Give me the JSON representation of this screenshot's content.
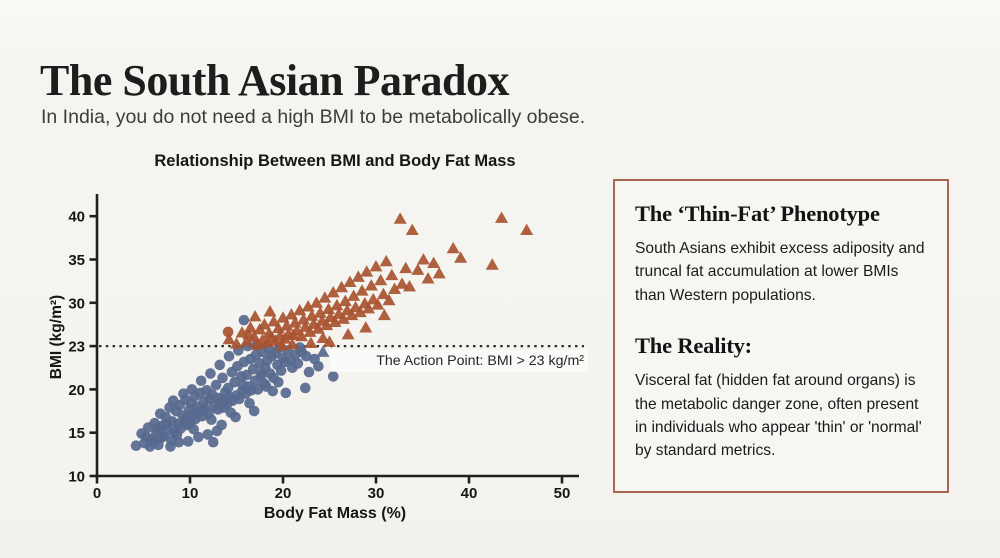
{
  "page": {
    "title": "The South Asian Paradox",
    "subtitle": "In India, you do not need a high BMI to be metabolically obese."
  },
  "chart_data": {
    "type": "scatter",
    "title": "Relationship Between BMI and Body Fat Mass",
    "xlabel": "Body Fat Mass (%)",
    "ylabel": "BMI (kg/m²)",
    "xlim": [
      0,
      50
    ],
    "x_ticks": [
      0,
      10,
      20,
      30,
      40,
      50
    ],
    "y_ticks": [
      10,
      15,
      20,
      23,
      30,
      35,
      40
    ],
    "y_axis_note": "tick labels evenly spaced; 23 replaces 25 on the scale",
    "grid": false,
    "legend": "none",
    "threshold": {
      "y": 23,
      "label": "The Action Point: BMI > 23 kg/m²",
      "style": "dotted"
    },
    "colors": {
      "healthy": "#56698e",
      "risk": "#a8532f",
      "axis": "#202020",
      "threshold_line": "#2e2e2e"
    },
    "series": [
      {
        "name": "below-action-point",
        "marker": "circle",
        "color": "#56698e",
        "points": [
          [
            4.2,
            13.5
          ],
          [
            4.8,
            14.9
          ],
          [
            5.1,
            13.8
          ],
          [
            5.5,
            15.6
          ],
          [
            5.9,
            14.3
          ],
          [
            6.2,
            16.1
          ],
          [
            6.4,
            15.0
          ],
          [
            6.6,
            13.6
          ],
          [
            6.8,
            17.2
          ],
          [
            7.0,
            15.8
          ],
          [
            7.2,
            14.6
          ],
          [
            7.4,
            16.8
          ],
          [
            7.6,
            15.3
          ],
          [
            7.8,
            17.9
          ],
          [
            8.0,
            14.1
          ],
          [
            8.1,
            16.3
          ],
          [
            8.3,
            15.1
          ],
          [
            8.5,
            17.5
          ],
          [
            8.7,
            16.0
          ],
          [
            8.9,
            18.2
          ],
          [
            9.0,
            15.5
          ],
          [
            9.2,
            17.0
          ],
          [
            9.4,
            16.4
          ],
          [
            9.5,
            18.8
          ],
          [
            9.7,
            15.9
          ],
          [
            9.9,
            17.6
          ],
          [
            10.0,
            16.1
          ],
          [
            10.1,
            18.4
          ],
          [
            10.3,
            17.1
          ],
          [
            10.5,
            19.2
          ],
          [
            10.6,
            16.6
          ],
          [
            10.8,
            18.0
          ],
          [
            11.0,
            17.4
          ],
          [
            11.1,
            19.6
          ],
          [
            11.3,
            16.9
          ],
          [
            11.5,
            18.6
          ],
          [
            11.6,
            17.8
          ],
          [
            11.8,
            19.9
          ],
          [
            12.0,
            17.2
          ],
          [
            12.1,
            18.9
          ],
          [
            12.3,
            16.5
          ],
          [
            12.4,
            19.4
          ],
          [
            12.6,
            18.1
          ],
          [
            12.8,
            20.3
          ],
          [
            13.0,
            17.7
          ],
          [
            13.1,
            19.0
          ],
          [
            13.3,
            18.5
          ],
          [
            13.5,
            20.8
          ],
          [
            13.6,
            17.9
          ],
          [
            13.8,
            19.7
          ],
          [
            14.0,
            18.3
          ],
          [
            14.1,
            20.1
          ],
          [
            14.3,
            19.1
          ],
          [
            14.5,
            21.2
          ],
          [
            14.6,
            18.7
          ],
          [
            14.8,
            20.5
          ],
          [
            15.0,
            19.3
          ],
          [
            15.1,
            21.6
          ],
          [
            15.3,
            18.9
          ],
          [
            15.5,
            20.9
          ],
          [
            15.6,
            19.8
          ],
          [
            15.8,
            21.9
          ],
          [
            16.0,
            19.5
          ],
          [
            16.1,
            21.0
          ],
          [
            16.3,
            20.2
          ],
          [
            16.5,
            22.1
          ],
          [
            16.6,
            19.9
          ],
          [
            16.8,
            21.4
          ],
          [
            17.0,
            20.6
          ],
          [
            17.1,
            22.4
          ],
          [
            17.3,
            20.0
          ],
          [
            17.5,
            21.8
          ],
          [
            17.6,
            20.9
          ],
          [
            17.8,
            22.6
          ],
          [
            18.0,
            20.4
          ],
          [
            18.1,
            21.5
          ],
          [
            18.3,
            22.0
          ],
          [
            18.5,
            22.8
          ],
          [
            18.6,
            21.1
          ],
          [
            18.8,
            22.3
          ],
          [
            19.0,
            20.8
          ],
          [
            19.2,
            22.5
          ],
          [
            19.4,
            21.7
          ],
          [
            19.6,
            22.9
          ],
          [
            19.8,
            21.3
          ],
          [
            20.0,
            22.2
          ],
          [
            20.2,
            21.9
          ],
          [
            20.5,
            22.7
          ],
          [
            20.8,
            22.0
          ],
          [
            21.0,
            21.5
          ],
          [
            21.3,
            22.4
          ],
          [
            21.6,
            21.8
          ],
          [
            22.0,
            22.6
          ],
          [
            22.4,
            20.1
          ],
          [
            22.8,
            21.2
          ],
          [
            23.4,
            22.1
          ],
          [
            23.8,
            21.6
          ],
          [
            25.4,
            20.9
          ],
          [
            16.9,
            17.5
          ],
          [
            14.9,
            16.8
          ],
          [
            13.4,
            15.9
          ],
          [
            12.9,
            15.2
          ],
          [
            11.9,
            14.8
          ],
          [
            10.9,
            14.5
          ],
          [
            9.8,
            14.0
          ],
          [
            8.8,
            13.9
          ],
          [
            7.9,
            13.4
          ],
          [
            6.9,
            14.4
          ],
          [
            6.1,
            13.9
          ],
          [
            5.3,
            14.5
          ],
          [
            8.2,
            18.7
          ],
          [
            9.3,
            19.5
          ],
          [
            10.2,
            20.0
          ],
          [
            11.2,
            20.6
          ],
          [
            12.2,
            21.1
          ],
          [
            13.2,
            21.7
          ],
          [
            14.2,
            22.3
          ],
          [
            15.2,
            22.7
          ],
          [
            16.2,
            23.0
          ],
          [
            17.2,
            23.2
          ],
          [
            7.5,
            16.0
          ],
          [
            9.6,
            16.7
          ],
          [
            11.4,
            17.6
          ],
          [
            13.7,
            18.8
          ],
          [
            15.7,
            20.3
          ],
          [
            17.7,
            21.1
          ],
          [
            19.5,
            20.5
          ],
          [
            21.8,
            22.9
          ],
          [
            15.8,
            27.2
          ],
          [
            18.9,
            19.8
          ],
          [
            20.3,
            19.6
          ],
          [
            22.5,
            22.3
          ],
          [
            12.5,
            13.9
          ],
          [
            10.4,
            15.4
          ],
          [
            8.6,
            14.8
          ],
          [
            6.5,
            15.5
          ],
          [
            5.7,
            13.4
          ],
          [
            16.4,
            18.4
          ],
          [
            18.2,
            20.2
          ],
          [
            14.4,
            17.3
          ]
        ]
      },
      {
        "name": "above-action-point",
        "marker": "triangle",
        "color": "#a8532f",
        "points": [
          [
            14.2,
            24.1
          ],
          [
            15.0,
            23.4
          ],
          [
            15.6,
            25.2
          ],
          [
            16.1,
            23.8
          ],
          [
            16.5,
            26.0
          ],
          [
            16.9,
            24.5
          ],
          [
            17.2,
            23.2
          ],
          [
            17.5,
            25.7
          ],
          [
            17.8,
            24.0
          ],
          [
            18.0,
            26.5
          ],
          [
            18.3,
            23.6
          ],
          [
            18.5,
            25.1
          ],
          [
            18.8,
            24.4
          ],
          [
            19.0,
            27.0
          ],
          [
            19.2,
            23.9
          ],
          [
            19.5,
            25.9
          ],
          [
            19.7,
            24.7
          ],
          [
            20.0,
            27.6
          ],
          [
            20.2,
            24.2
          ],
          [
            20.4,
            26.3
          ],
          [
            20.6,
            25.0
          ],
          [
            20.9,
            28.1
          ],
          [
            21.1,
            24.8
          ],
          [
            21.3,
            26.8
          ],
          [
            21.5,
            25.5
          ],
          [
            21.8,
            28.8
          ],
          [
            22.0,
            24.6
          ],
          [
            22.2,
            27.3
          ],
          [
            22.4,
            26.1
          ],
          [
            22.7,
            29.4
          ],
          [
            22.9,
            25.3
          ],
          [
            23.1,
            27.9
          ],
          [
            23.3,
            26.6
          ],
          [
            23.6,
            30.0
          ],
          [
            23.8,
            25.8
          ],
          [
            24.0,
            28.4
          ],
          [
            24.2,
            27.1
          ],
          [
            24.5,
            30.6
          ],
          [
            24.7,
            26.4
          ],
          [
            24.9,
            29.0
          ],
          [
            25.1,
            27.7
          ],
          [
            25.4,
            31.2
          ],
          [
            25.6,
            26.9
          ],
          [
            25.8,
            29.6
          ],
          [
            26.0,
            28.2
          ],
          [
            26.3,
            31.8
          ],
          [
            26.5,
            27.4
          ],
          [
            26.7,
            30.2
          ],
          [
            26.9,
            28.8
          ],
          [
            27.2,
            32.4
          ],
          [
            27.4,
            28.0
          ],
          [
            27.6,
            30.8
          ],
          [
            27.8,
            29.3
          ],
          [
            28.1,
            33.0
          ],
          [
            28.3,
            28.5
          ],
          [
            28.5,
            31.4
          ],
          [
            28.8,
            29.9
          ],
          [
            29.0,
            33.6
          ],
          [
            29.2,
            29.1
          ],
          [
            29.5,
            32.0
          ],
          [
            29.7,
            30.4
          ],
          [
            30.0,
            34.2
          ],
          [
            30.2,
            29.7
          ],
          [
            30.5,
            32.6
          ],
          [
            30.8,
            31.0
          ],
          [
            31.1,
            34.8
          ],
          [
            31.4,
            30.3
          ],
          [
            31.7,
            33.2
          ],
          [
            32.0,
            31.6
          ],
          [
            32.6,
            39.7
          ],
          [
            32.8,
            32.2
          ],
          [
            33.2,
            34.0
          ],
          [
            33.6,
            31.9
          ],
          [
            33.9,
            38.4
          ],
          [
            34.5,
            33.8
          ],
          [
            35.1,
            35.0
          ],
          [
            35.6,
            32.8
          ],
          [
            36.2,
            34.6
          ],
          [
            36.8,
            33.4
          ],
          [
            38.3,
            36.3
          ],
          [
            39.1,
            35.2
          ],
          [
            42.5,
            34.4
          ],
          [
            43.5,
            39.8
          ],
          [
            46.2,
            38.4
          ],
          [
            19.9,
            23.1
          ],
          [
            21.0,
            23.3
          ],
          [
            23.0,
            23.5
          ],
          [
            25.0,
            23.7
          ],
          [
            27.0,
            24.9
          ],
          [
            17.0,
            27.8
          ],
          [
            18.6,
            28.6
          ],
          [
            16.3,
            24.9
          ],
          [
            28.9,
            26.0
          ],
          [
            30.9,
            28.0
          ],
          [
            24.3,
            24.3
          ]
        ]
      },
      {
        "name": "blue-triangle-outlier",
        "marker": "triangle",
        "color": "#56698e",
        "points": [
          [
            24.3,
            22.6
          ]
        ]
      },
      {
        "name": "orange-circle-outlier",
        "marker": "circle",
        "color": "#a8532f",
        "points": [
          [
            14.1,
            25.3
          ]
        ]
      }
    ]
  },
  "panel": {
    "border_color": "#a9674d",
    "sections": [
      {
        "heading": "The ‘Thin-Fat’ Phenotype",
        "body": "South Asians exhibit excess adiposity and truncal fat accumulation at lower BMIs than Western populations."
      },
      {
        "heading": "The Reality:",
        "body": "Visceral fat (hidden fat around organs) is the metabolic danger zone, often present in individuals who appear 'thin' or 'normal' by standard metrics."
      }
    ]
  }
}
